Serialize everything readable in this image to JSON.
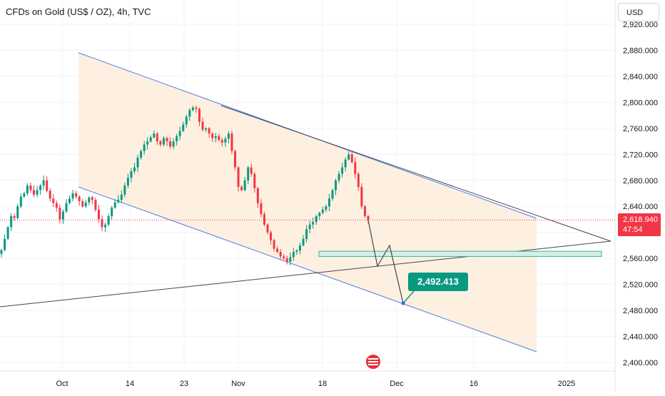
{
  "header": {
    "title": "CFDs on Gold (US$ / OZ), 4h, TVC",
    "currency": "USD"
  },
  "price_tag": {
    "price": "2,618.940",
    "countdown": "47:54"
  },
  "target_label": "2,492.413",
  "colors": {
    "up": "#089981",
    "down": "#f23645",
    "channel_line": "#4f7be3",
    "channel_fill": "#fdebd5",
    "trend_line": "#434651",
    "zone_fill": "#d4efe8",
    "zone_border": "#3bb39b",
    "price_line": "#f23645"
  },
  "chart_data": {
    "type": "candlestick",
    "symbol": "CFDs on Gold (US$ / OZ)",
    "interval": "4h",
    "source": "TVC",
    "y_axis": {
      "ticks": [
        "2,920.000",
        "2,880.000",
        "2,840.000",
        "2,800.000",
        "2,760.000",
        "2,720.000",
        "2,680.000",
        "2,640.000",
        "2,600.000",
        "2,560.000",
        "2,520.000",
        "2,480.000",
        "2,440.000",
        "2,400.000"
      ],
      "range": [
        2395,
        2925
      ]
    },
    "x_axis": {
      "ticks": [
        "Oct",
        "14",
        "23",
        "Nov",
        "18",
        "Dec",
        "16",
        "2025"
      ]
    },
    "last_price": 2618.94,
    "projected_target": 2492.413,
    "support_zone": [
      2563,
      2571
    ],
    "closes": [
      2573,
      2590,
      2608,
      2625,
      2622,
      2640,
      2655,
      2660,
      2672,
      2665,
      2658,
      2665,
      2672,
      2680,
      2664,
      2652,
      2645,
      2638,
      2620,
      2632,
      2645,
      2652,
      2660,
      2655,
      2648,
      2640,
      2646,
      2654,
      2650,
      2635,
      2620,
      2608,
      2612,
      2625,
      2638,
      2646,
      2650,
      2658,
      2672,
      2684,
      2694,
      2700,
      2715,
      2725,
      2735,
      2740,
      2746,
      2752,
      2740,
      2735,
      2745,
      2740,
      2732,
      2740,
      2748,
      2756,
      2766,
      2778,
      2788,
      2792,
      2790,
      2770,
      2758,
      2760,
      2752,
      2745,
      2748,
      2742,
      2738,
      2744,
      2752,
      2725,
      2700,
      2670,
      2665,
      2680,
      2700,
      2690,
      2668,
      2645,
      2628,
      2612,
      2600,
      2588,
      2575,
      2570,
      2563,
      2560,
      2555,
      2562,
      2570,
      2572,
      2580,
      2590,
      2605,
      2612,
      2616,
      2625,
      2630,
      2635,
      2640,
      2652,
      2665,
      2680,
      2690,
      2700,
      2712,
      2720,
      2708,
      2690,
      2670,
      2640,
      2625,
      2618.94
    ]
  }
}
